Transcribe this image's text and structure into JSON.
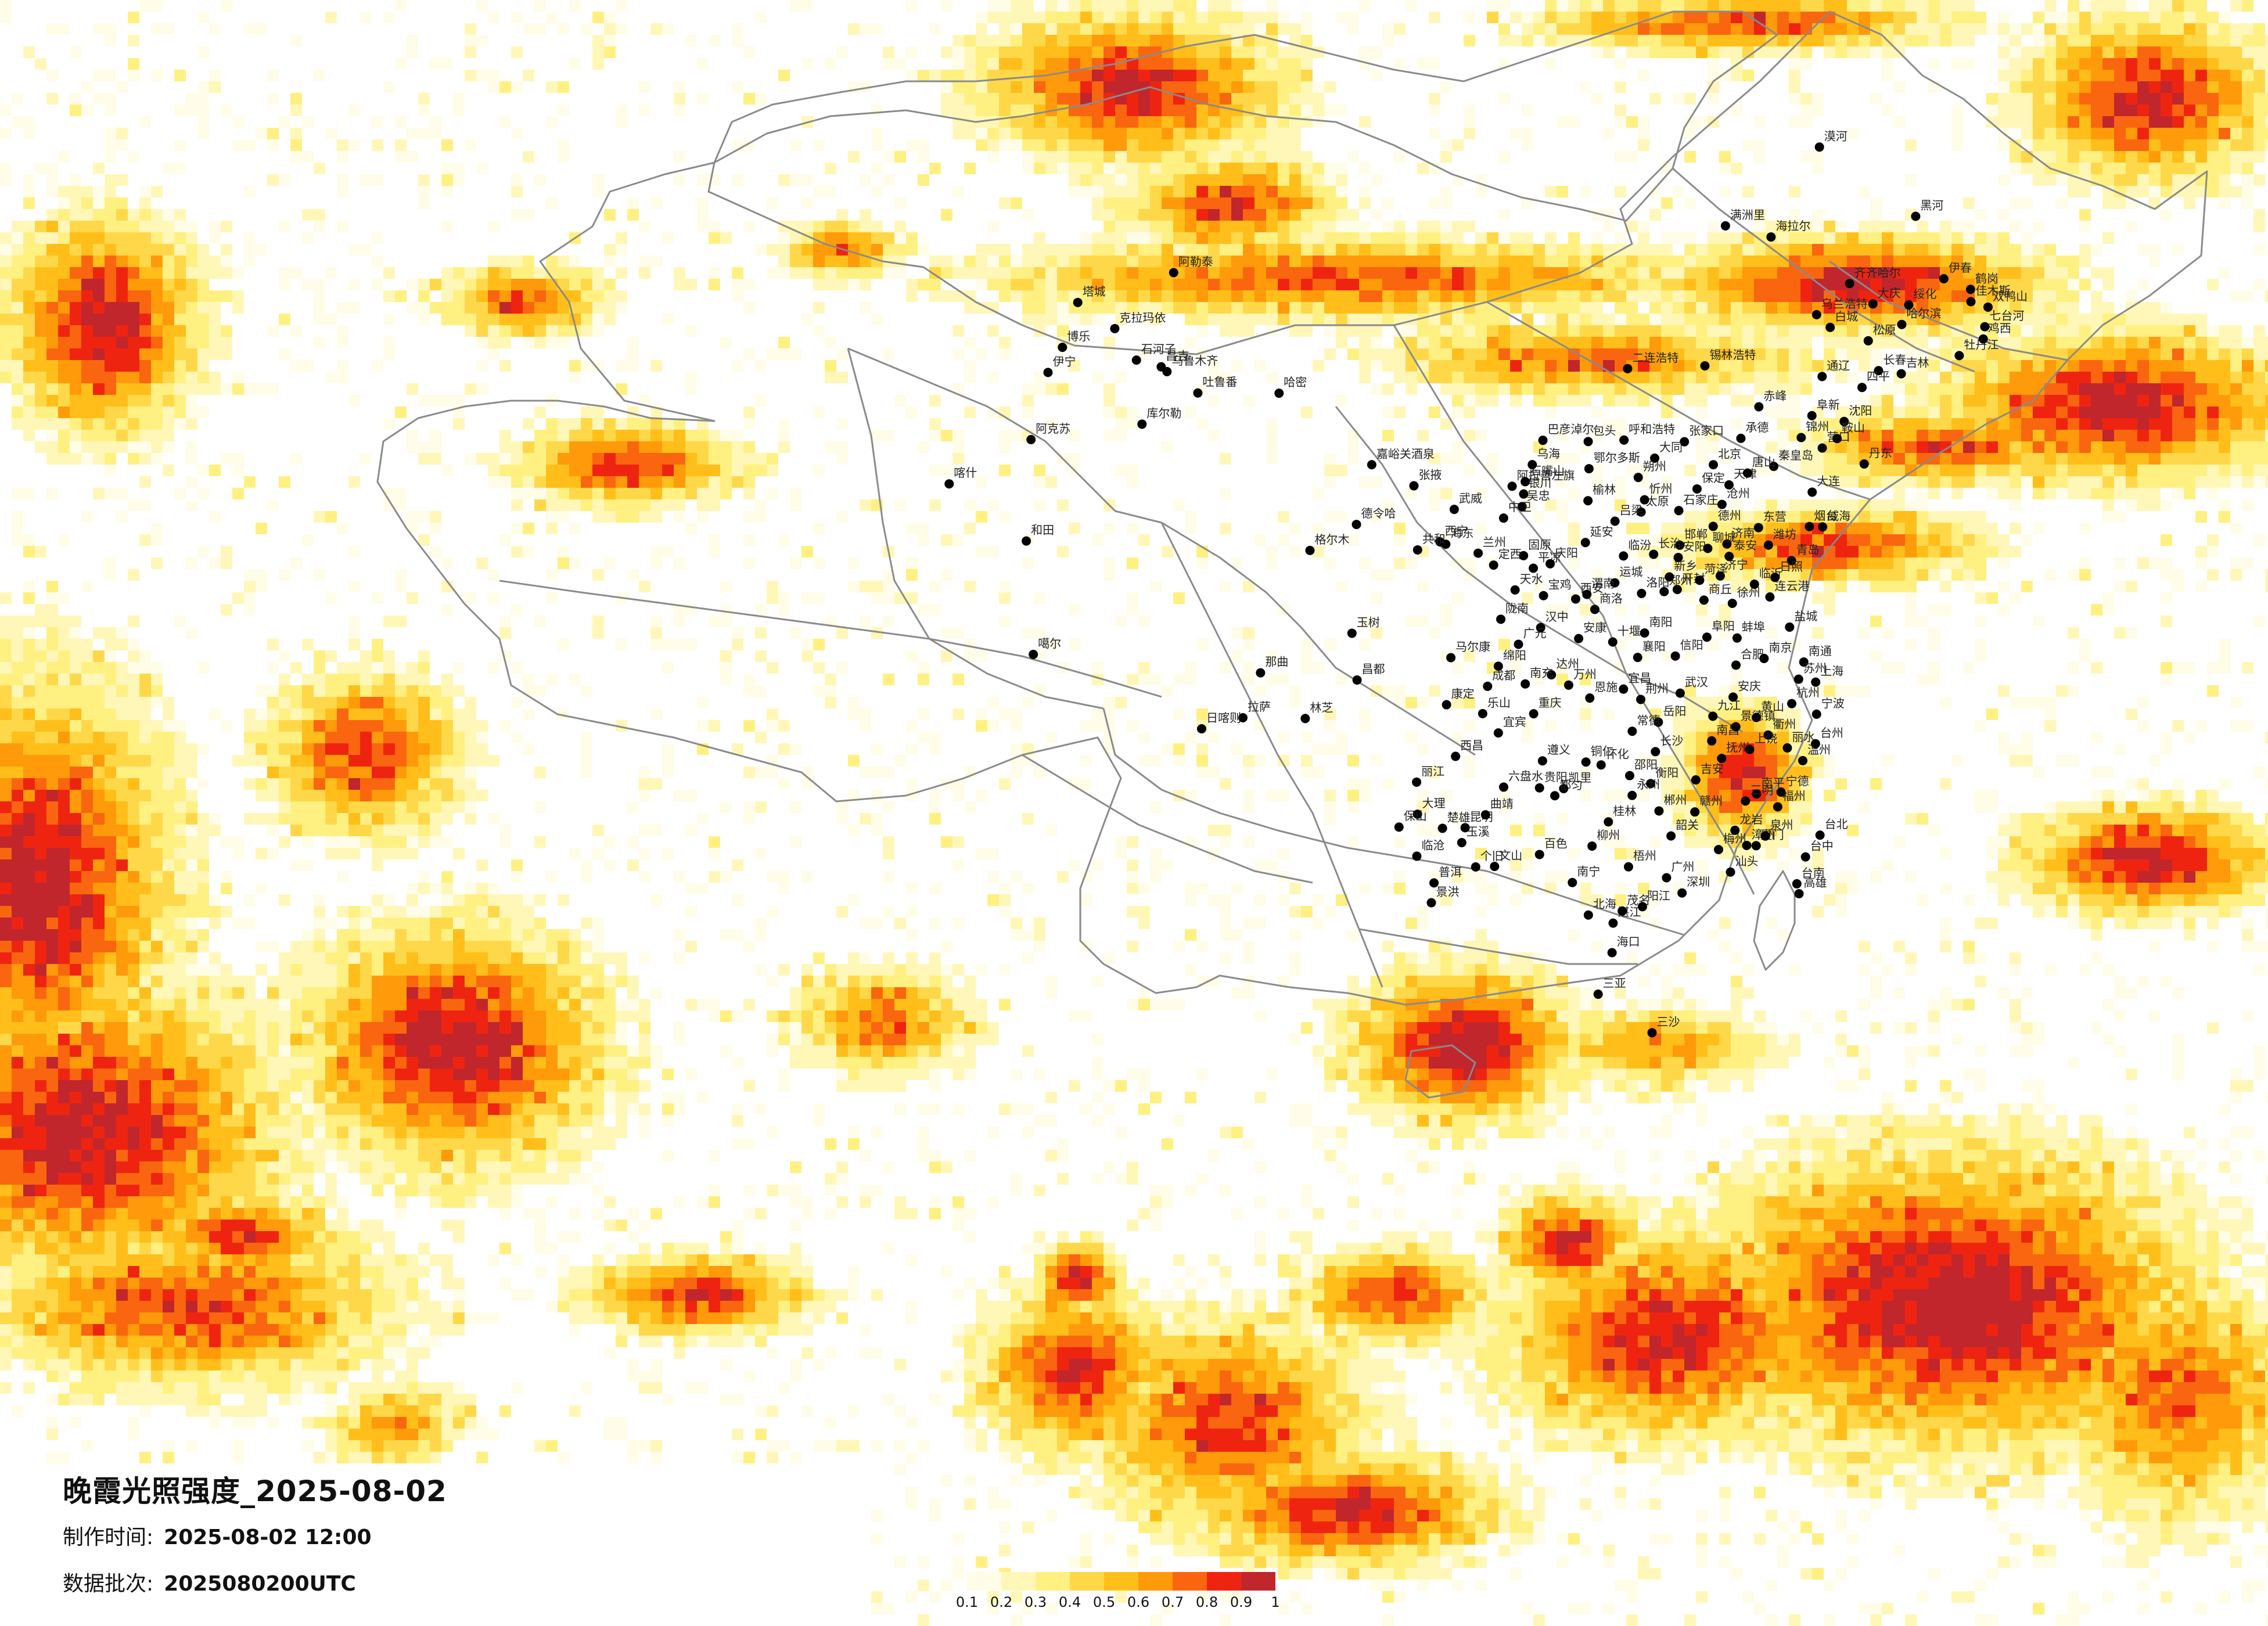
{
  "header": {
    "title": "晚霞光照强度_2025-08-02",
    "made_time_label": "制作时间:",
    "made_time_value": "2025-08-02 12:00",
    "batch_label": "数据批次:",
    "batch_value": "2025080200UTC"
  },
  "legend": {
    "colors": [
      "#fffde8",
      "#fff7b8",
      "#fff082",
      "#ffd84a",
      "#ffbe1a",
      "#ff9a0a",
      "#f9660f",
      "#ef2410",
      "#c1262c"
    ],
    "ticks": [
      "0.1",
      "0.2",
      "0.3",
      "0.4",
      "0.5",
      "0.6",
      "0.7",
      "0.8",
      "0.9",
      "1"
    ]
  },
  "map": {
    "background": "#ffffff",
    "border_color": "#8a8a8a",
    "dot_color": "#000000"
  },
  "cities": [
    {
      "name": "伊宁",
      "lon": 81.3,
      "lat": 43.9
    },
    {
      "name": "克拉玛依",
      "lon": 84.9,
      "lat": 45.6
    },
    {
      "name": "昌吉",
      "lon": 87.3,
      "lat": 44.0
    },
    {
      "name": "乌鲁木齐",
      "lon": 87.6,
      "lat": 43.8
    },
    {
      "name": "吐鲁番",
      "lon": 89.2,
      "lat": 42.9
    },
    {
      "name": "哈密",
      "lon": 93.5,
      "lat": 42.8
    },
    {
      "name": "库尔勒",
      "lon": 86.2,
      "lat": 41.7
    },
    {
      "name": "阿克苏",
      "lon": 80.3,
      "lat": 41.2
    },
    {
      "name": "喀什",
      "lon": 75.9,
      "lat": 39.5
    },
    {
      "name": "和田",
      "lon": 79.9,
      "lat": 37.1
    },
    {
      "name": "嘉峪关酒泉",
      "lon": 98.3,
      "lat": 39.8
    },
    {
      "name": "德令哈",
      "lon": 97.4,
      "lat": 37.4
    },
    {
      "name": "格尔木",
      "lon": 94.9,
      "lat": 36.4
    },
    {
      "name": "玉树",
      "lon": 97.0,
      "lat": 33.0
    },
    {
      "name": "那曲",
      "lon": 92.1,
      "lat": 31.5
    },
    {
      "name": "昌都",
      "lon": 97.2,
      "lat": 31.1
    },
    {
      "name": "拉萨",
      "lon": 91.1,
      "lat": 29.7
    },
    {
      "name": "日喀则",
      "lon": 88.9,
      "lat": 29.3
    },
    {
      "name": "林芝",
      "lon": 94.4,
      "lat": 29.6
    },
    {
      "name": "噶尔",
      "lon": 80.1,
      "lat": 32.5
    },
    {
      "name": "西宁",
      "lon": 101.8,
      "lat": 36.6
    },
    {
      "name": "兰州",
      "lon": 103.8,
      "lat": 36.1
    },
    {
      "name": "银川",
      "lon": 106.3,
      "lat": 38.5
    },
    {
      "name": "呼和浩特",
      "lon": 111.7,
      "lat": 40.8
    },
    {
      "name": "包头",
      "lon": 109.8,
      "lat": 40.7
    },
    {
      "name": "鄂尔多斯",
      "lon": 109.8,
      "lat": 39.6
    },
    {
      "name": "二连浩特",
      "lon": 112.0,
      "lat": 43.7
    },
    {
      "name": "锡林浩特",
      "lon": 116.1,
      "lat": 43.9
    },
    {
      "name": "海拉尔",
      "lon": 119.8,
      "lat": 49.2
    },
    {
      "name": "满洲里",
      "lon": 117.4,
      "lat": 49.6
    },
    {
      "name": "漠河",
      "lon": 122.5,
      "lat": 52.9
    },
    {
      "name": "齐齐哈尔",
      "lon": 123.9,
      "lat": 47.4
    },
    {
      "name": "大庆",
      "lon": 125.1,
      "lat": 46.6
    },
    {
      "name": "哈尔滨",
      "lon": 126.6,
      "lat": 45.8
    },
    {
      "name": "伊春",
      "lon": 128.9,
      "lat": 47.7
    },
    {
      "name": "佳木斯",
      "lon": 130.3,
      "lat": 46.8
    },
    {
      "name": "牡丹江",
      "lon": 129.6,
      "lat": 44.6
    },
    {
      "name": "长春",
      "lon": 125.3,
      "lat": 43.9
    },
    {
      "name": "吉林",
      "lon": 126.5,
      "lat": 43.8
    },
    {
      "name": "沈阳",
      "lon": 123.4,
      "lat": 41.8
    },
    {
      "name": "大连",
      "lon": 121.6,
      "lat": 38.9
    },
    {
      "name": "丹东",
      "lon": 124.4,
      "lat": 40.1
    },
    {
      "name": "北京",
      "lon": 116.4,
      "lat": 39.9
    },
    {
      "name": "天津",
      "lon": 117.2,
      "lat": 39.1
    },
    {
      "name": "石家庄",
      "lon": 114.5,
      "lat": 38.0
    },
    {
      "name": "太原",
      "lon": 112.5,
      "lat": 37.9
    },
    {
      "name": "济南",
      "lon": 117.0,
      "lat": 36.7
    },
    {
      "name": "青岛",
      "lon": 120.4,
      "lat": 36.1
    },
    {
      "name": "郑州",
      "lon": 113.6,
      "lat": 34.7
    },
    {
      "name": "西安",
      "lon": 108.9,
      "lat": 34.3
    },
    {
      "name": "南京",
      "lon": 118.8,
      "lat": 32.1
    },
    {
      "name": "上海",
      "lon": 121.5,
      "lat": 31.2
    },
    {
      "name": "杭州",
      "lon": 120.2,
      "lat": 30.3
    },
    {
      "name": "合肥",
      "lon": 117.3,
      "lat": 31.8
    },
    {
      "name": "武汉",
      "lon": 114.3,
      "lat": 30.6
    },
    {
      "name": "长沙",
      "lon": 112.9,
      "lat": 28.2
    },
    {
      "name": "南昌",
      "lon": 115.9,
      "lat": 28.7
    },
    {
      "name": "福州",
      "lon": 119.3,
      "lat": 26.1
    },
    {
      "name": "厦门",
      "lon": 118.1,
      "lat": 24.5
    },
    {
      "name": "台北",
      "lon": 121.5,
      "lat": 25.0
    },
    {
      "name": "台中",
      "lon": 120.7,
      "lat": 24.1
    },
    {
      "name": "台南",
      "lon": 120.2,
      "lat": 23.0
    },
    {
      "name": "高雄",
      "lon": 120.3,
      "lat": 22.6
    },
    {
      "name": "广州",
      "lon": 113.3,
      "lat": 23.1
    },
    {
      "name": "深圳",
      "lon": 114.1,
      "lat": 22.5
    },
    {
      "name": "汕头",
      "lon": 116.7,
      "lat": 23.4
    },
    {
      "name": "南宁",
      "lon": 108.3,
      "lat": 22.8
    },
    {
      "name": "桂林",
      "lon": 110.3,
      "lat": 25.3
    },
    {
      "name": "海口",
      "lon": 110.3,
      "lat": 20.0
    },
    {
      "name": "三亚",
      "lon": 109.5,
      "lat": 18.3
    },
    {
      "name": "贵阳",
      "lon": 106.7,
      "lat": 26.6
    },
    {
      "name": "昆明",
      "lon": 102.7,
      "lat": 25.0
    },
    {
      "name": "大理",
      "lon": 100.2,
      "lat": 25.6
    },
    {
      "name": "丽江",
      "lon": 100.2,
      "lat": 26.9
    },
    {
      "name": "景洪",
      "lon": 100.8,
      "lat": 22.0
    },
    {
      "name": "成都",
      "lon": 104.1,
      "lat": 30.7
    },
    {
      "name": "重庆",
      "lon": 106.5,
      "lat": 29.6
    },
    {
      "name": "绵阳",
      "lon": 104.7,
      "lat": 31.5
    },
    {
      "name": "宜宾",
      "lon": 104.6,
      "lat": 28.8
    },
    {
      "name": "西昌",
      "lon": 102.3,
      "lat": 27.9
    },
    {
      "name": "遵义",
      "lon": 106.9,
      "lat": 27.7
    },
    {
      "name": "襄阳",
      "lon": 112.1,
      "lat": 32.0
    },
    {
      "name": "宜昌",
      "lon": 111.3,
      "lat": 30.7
    },
    {
      "name": "洛阳",
      "lon": 112.4,
      "lat": 34.6
    },
    {
      "name": "赣州",
      "lon": 114.9,
      "lat": 25.8
    },
    {
      "name": "温州",
      "lon": 120.7,
      "lat": 28.0
    },
    {
      "name": "宁波",
      "lon": 121.5,
      "lat": 29.9
    },
    {
      "name": "连云港",
      "lon": 119.2,
      "lat": 34.6
    },
    {
      "name": "烟台",
      "lon": 121.4,
      "lat": 37.5
    },
    {
      "name": "秦皇岛",
      "lon": 119.6,
      "lat": 39.9
    },
    {
      "name": "赤峰",
      "lon": 118.9,
      "lat": 42.3
    },
    {
      "name": "通辽",
      "lon": 122.3,
      "lat": 43.6
    },
    {
      "name": "固原",
      "lon": 106.2,
      "lat": 36.0
    },
    {
      "name": "天水",
      "lon": 105.7,
      "lat": 34.6
    },
    {
      "name": "汉中",
      "lon": 107.0,
      "lat": 33.1
    },
    {
      "name": "安康",
      "lon": 109.0,
      "lat": 32.7
    },
    {
      "name": "张掖",
      "lon": 100.5,
      "lat": 38.9
    },
    {
      "name": "武威",
      "lon": 102.6,
      "lat": 37.9
    },
    {
      "name": "阿拉善左旗",
      "lon": 105.7,
      "lat": 38.8
    },
    {
      "name": "康定",
      "lon": 101.9,
      "lat": 30.0
    },
    {
      "name": "马尔康",
      "lon": 102.2,
      "lat": 31.9
    },
    {
      "name": "怀化",
      "lon": 110.0,
      "lat": 27.6
    },
    {
      "name": "柳州",
      "lon": 109.4,
      "lat": 24.3
    },
    {
      "name": "百色",
      "lon": 106.6,
      "lat": 23.9
    },
    {
      "name": "北海",
      "lon": 109.1,
      "lat": 21.5
    },
    {
      "name": "湛江",
      "lon": 110.4,
      "lat": 21.2
    },
    {
      "name": "茂名",
      "lon": 110.9,
      "lat": 21.7
    },
    {
      "name": "梅州",
      "lon": 116.1,
      "lat": 24.3
    },
    {
      "name": "龙岩",
      "lon": 117.0,
      "lat": 25.1
    },
    {
      "name": "漳州",
      "lon": 117.6,
      "lat": 24.5
    },
    {
      "name": "泉州",
      "lon": 118.6,
      "lat": 24.9
    },
    {
      "name": "衢州",
      "lon": 118.9,
      "lat": 29.0
    },
    {
      "name": "九江",
      "lon": 116.0,
      "lat": 29.7
    },
    {
      "name": "吉安",
      "lon": 115.0,
      "lat": 27.1
    },
    {
      "name": "郴州",
      "lon": 113.0,
      "lat": 25.8
    },
    {
      "name": "衡阳",
      "lon": 112.6,
      "lat": 26.9
    },
    {
      "name": "岳阳",
      "lon": 113.1,
      "lat": 29.4
    },
    {
      "name": "荆州",
      "lon": 112.2,
      "lat": 30.3
    },
    {
      "name": "信阳",
      "lon": 114.1,
      "lat": 32.1
    },
    {
      "name": "南阳",
      "lon": 112.5,
      "lat": 33.0
    },
    {
      "name": "阜阳",
      "lon": 115.8,
      "lat": 32.9
    },
    {
      "name": "徐州",
      "lon": 117.2,
      "lat": 34.3
    },
    {
      "name": "临沂",
      "lon": 118.4,
      "lat": 35.1
    },
    {
      "name": "潍坊",
      "lon": 119.2,
      "lat": 36.7
    },
    {
      "name": "德州",
      "lon": 116.3,
      "lat": 37.4
    },
    {
      "name": "邯郸",
      "lon": 114.5,
      "lat": 36.6
    },
    {
      "name": "张家口",
      "lon": 114.9,
      "lat": 40.8
    },
    {
      "name": "大同",
      "lon": 113.3,
      "lat": 40.1
    },
    {
      "name": "运城",
      "lon": 111.0,
      "lat": 35.0
    },
    {
      "name": "榆林",
      "lon": 109.7,
      "lat": 38.3
    },
    {
      "name": "延安",
      "lon": 109.5,
      "lat": 36.6
    },
    {
      "name": "朔州",
      "lon": 112.4,
      "lat": 39.3
    },
    {
      "name": "承德",
      "lon": 117.9,
      "lat": 41.0
    },
    {
      "name": "锦州",
      "lon": 121.1,
      "lat": 41.1
    },
    {
      "name": "营口",
      "lon": 122.2,
      "lat": 40.7
    },
    {
      "name": "鞍山",
      "lon": 123.0,
      "lat": 41.1
    },
    {
      "name": "四平",
      "lon": 124.4,
      "lat": 43.2
    },
    {
      "name": "松原",
      "lon": 124.8,
      "lat": 45.1
    },
    {
      "name": "绥化",
      "lon": 127.0,
      "lat": 46.6
    },
    {
      "name": "七台河",
      "lon": 131.0,
      "lat": 45.8
    },
    {
      "name": "鸡西",
      "lon": 130.9,
      "lat": 45.3
    },
    {
      "name": "鹤岗",
      "lon": 130.3,
      "lat": 47.3
    },
    {
      "name": "双鸭山",
      "lon": 131.2,
      "lat": 46.6
    },
    {
      "name": "黑河",
      "lon": 127.5,
      "lat": 50.2
    },
    {
      "name": "乌兰浩特",
      "lon": 122.1,
      "lat": 46.1
    },
    {
      "name": "白城",
      "lon": 122.8,
      "lat": 45.6
    },
    {
      "name": "阜新",
      "lon": 121.7,
      "lat": 42.0
    },
    {
      "name": "普洱",
      "lon": 100.97,
      "lat": 22.8
    },
    {
      "name": "文山",
      "lon": 104.2,
      "lat": 23.4
    },
    {
      "name": "个旧",
      "lon": 103.2,
      "lat": 23.4
    },
    {
      "name": "玉溪",
      "lon": 102.5,
      "lat": 24.4
    },
    {
      "name": "曲靖",
      "lon": 103.8,
      "lat": 25.5
    },
    {
      "name": "保山",
      "lon": 99.2,
      "lat": 25.1
    },
    {
      "name": "临沧",
      "lon": 100.1,
      "lat": 23.9
    },
    {
      "name": "楚雄",
      "lon": 101.5,
      "lat": 25.0
    },
    {
      "name": "六盘水",
      "lon": 104.8,
      "lat": 26.6
    },
    {
      "name": "凯里",
      "lon": 107.98,
      "lat": 26.6
    },
    {
      "name": "铜仁",
      "lon": 109.2,
      "lat": 27.7
    },
    {
      "name": "都匀",
      "lon": 107.5,
      "lat": 26.3
    },
    {
      "name": "乐山",
      "lon": 103.8,
      "lat": 29.6
    },
    {
      "name": "达州",
      "lon": 107.5,
      "lat": 31.2
    },
    {
      "name": "南充",
      "lon": 106.1,
      "lat": 30.8
    },
    {
      "name": "广元",
      "lon": 105.8,
      "lat": 32.4
    },
    {
      "name": "万州",
      "lon": 108.4,
      "lat": 30.8
    },
    {
      "name": "恩施",
      "lon": 109.5,
      "lat": 30.3
    },
    {
      "name": "十堰",
      "lon": 110.8,
      "lat": 32.6
    },
    {
      "name": "常德",
      "lon": 111.7,
      "lat": 29.0
    },
    {
      "name": "邵阳",
      "lon": 111.5,
      "lat": 27.2
    },
    {
      "name": "永州",
      "lon": 111.6,
      "lat": 26.4
    },
    {
      "name": "梧州",
      "lon": 111.3,
      "lat": 23.5
    },
    {
      "name": "韶关",
      "lon": 113.6,
      "lat": 24.8
    },
    {
      "name": "阳江",
      "lon": 111.98,
      "lat": 21.9
    },
    {
      "name": "上饶",
      "lon": 117.9,
      "lat": 28.4
    },
    {
      "name": "景德镇",
      "lon": 117.2,
      "lat": 29.3
    },
    {
      "name": "安庆",
      "lon": 117.1,
      "lat": 30.5
    },
    {
      "name": "黄山",
      "lon": 118.3,
      "lat": 29.7
    },
    {
      "name": "蚌埠",
      "lon": 117.4,
      "lat": 32.9
    },
    {
      "name": "盐城",
      "lon": 120.2,
      "lat": 33.4
    },
    {
      "name": "南通",
      "lon": 120.9,
      "lat": 32.0
    },
    {
      "name": "苏州",
      "lon": 120.6,
      "lat": 31.3
    },
    {
      "name": "丽水",
      "lon": 119.9,
      "lat": 28.5
    },
    {
      "name": "台州",
      "lon": 121.4,
      "lat": 28.7
    },
    {
      "name": "南平",
      "lon": 118.2,
      "lat": 26.6
    },
    {
      "name": "三明",
      "lon": 117.6,
      "lat": 26.3
    },
    {
      "name": "宁德",
      "lon": 119.5,
      "lat": 26.7
    },
    {
      "name": "抚州",
      "lon": 116.4,
      "lat": 28.0
    },
    {
      "name": "商丘",
      "lon": 115.7,
      "lat": 34.4
    },
    {
      "name": "开封",
      "lon": 114.3,
      "lat": 34.8
    },
    {
      "name": "新乡",
      "lon": 113.9,
      "lat": 35.3
    },
    {
      "name": "安阳",
      "lon": 114.4,
      "lat": 36.1
    },
    {
      "name": "聊城",
      "lon": 115.98,
      "lat": 36.5
    },
    {
      "name": "泰安",
      "lon": 117.1,
      "lat": 36.2
    },
    {
      "name": "菏泽",
      "lon": 115.5,
      "lat": 35.2
    },
    {
      "name": "济宁",
      "lon": 116.6,
      "lat": 35.4
    },
    {
      "name": "日照",
      "lon": 119.5,
      "lat": 35.4
    },
    {
      "name": "威海",
      "lon": 122.1,
      "lat": 37.5
    },
    {
      "name": "东营",
      "lon": 118.7,
      "lat": 37.4
    },
    {
      "name": "沧州",
      "lon": 116.8,
      "lat": 38.3
    },
    {
      "name": "保定",
      "lon": 115.5,
      "lat": 38.9
    },
    {
      "name": "唐山",
      "lon": 118.2,
      "lat": 39.6
    },
    {
      "name": "长治",
      "lon": 113.1,
      "lat": 36.2
    },
    {
      "name": "临汾",
      "lon": 111.5,
      "lat": 36.1
    },
    {
      "name": "吕梁",
      "lon": 111.1,
      "lat": 37.5
    },
    {
      "name": "忻州",
      "lon": 112.7,
      "lat": 38.4
    },
    {
      "name": "宝鸡",
      "lon": 107.2,
      "lat": 34.4
    },
    {
      "name": "渭南",
      "lon": 109.5,
      "lat": 34.5
    },
    {
      "name": "商洛",
      "lon": 109.9,
      "lat": 33.9
    },
    {
      "name": "平凉",
      "lon": 106.7,
      "lat": 35.5
    },
    {
      "name": "庆阳",
      "lon": 107.6,
      "lat": 35.7
    },
    {
      "name": "定西",
      "lon": 104.6,
      "lat": 35.6
    },
    {
      "name": "陇南",
      "lon": 104.9,
      "lat": 33.4
    },
    {
      "name": "吴忠",
      "lon": 106.2,
      "lat": 37.99
    },
    {
      "name": "中卫",
      "lon": 105.2,
      "lat": 37.5
    },
    {
      "name": "石嘴山",
      "lon": 106.4,
      "lat": 39.0
    },
    {
      "name": "乌海",
      "lon": 106.8,
      "lat": 39.7
    },
    {
      "name": "巴彦淖尔",
      "lon": 107.4,
      "lat": 40.7
    },
    {
      "name": "海东",
      "lon": 102.1,
      "lat": 36.5
    },
    {
      "name": "共和",
      "lon": 100.6,
      "lat": 36.3
    },
    {
      "name": "阿勒泰",
      "lon": 88.1,
      "lat": 47.8
    },
    {
      "name": "博乐",
      "lon": 82.1,
      "lat": 44.9
    },
    {
      "name": "塔城",
      "lon": 82.98,
      "lat": 46.7
    },
    {
      "name": "石河子",
      "lon": 86.0,
      "lat": 44.3
    },
    {
      "name": "三沙",
      "lon": 112.3,
      "lat": 16.8
    }
  ]
}
